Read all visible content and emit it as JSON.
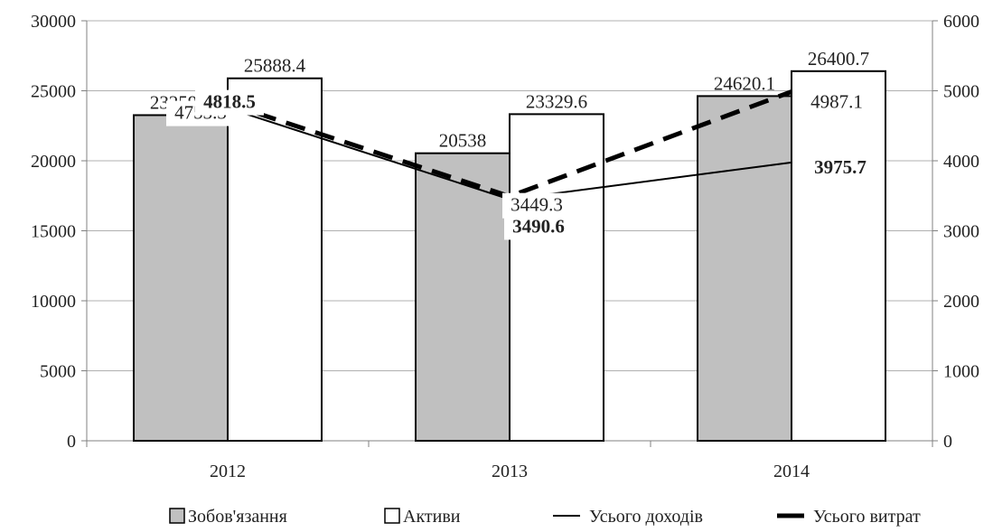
{
  "chart_data": {
    "type": "bar",
    "categories": [
      "2012",
      "2013",
      "2014"
    ],
    "y_left": {
      "range": [
        0,
        30000
      ],
      "ticks": [
        "0",
        "5000",
        "10000",
        "15000",
        "20000",
        "25000",
        "30000"
      ]
    },
    "y_right": {
      "range": [
        0,
        6000
      ],
      "ticks": [
        "0",
        "1000",
        "2000",
        "3000",
        "4000",
        "5000",
        "6000"
      ]
    },
    "grid": true,
    "legend_position": "bottom",
    "bar_series": [
      {
        "name": "Зобов'язання",
        "color": "#c0c0c0",
        "values": [
          23259.6,
          20538,
          24620.1
        ],
        "labels": [
          "23259.6",
          "20538",
          "24620.1"
        ]
      },
      {
        "name": "Активи",
        "color": "#ffffff",
        "values": [
          25888.4,
          23329.6,
          26400.7
        ],
        "labels": [
          "25888.4",
          "23329.6",
          "26400.7"
        ]
      }
    ],
    "line_series": [
      {
        "name": "Усього доходів",
        "style": "solid",
        "color": "#000000",
        "axis": "right",
        "values": [
          4753.3,
          3449.3,
          3975.7
        ],
        "labels": [
          "4753.3",
          "3449.3",
          "3975.7"
        ]
      },
      {
        "name": "Усього витрат",
        "style": "dashed",
        "color": "#000000",
        "axis": "right",
        "values": [
          4818.5,
          3490.6,
          4987.1
        ],
        "labels": [
          "4818.5",
          "3490.6",
          "4987.1"
        ]
      }
    ]
  }
}
